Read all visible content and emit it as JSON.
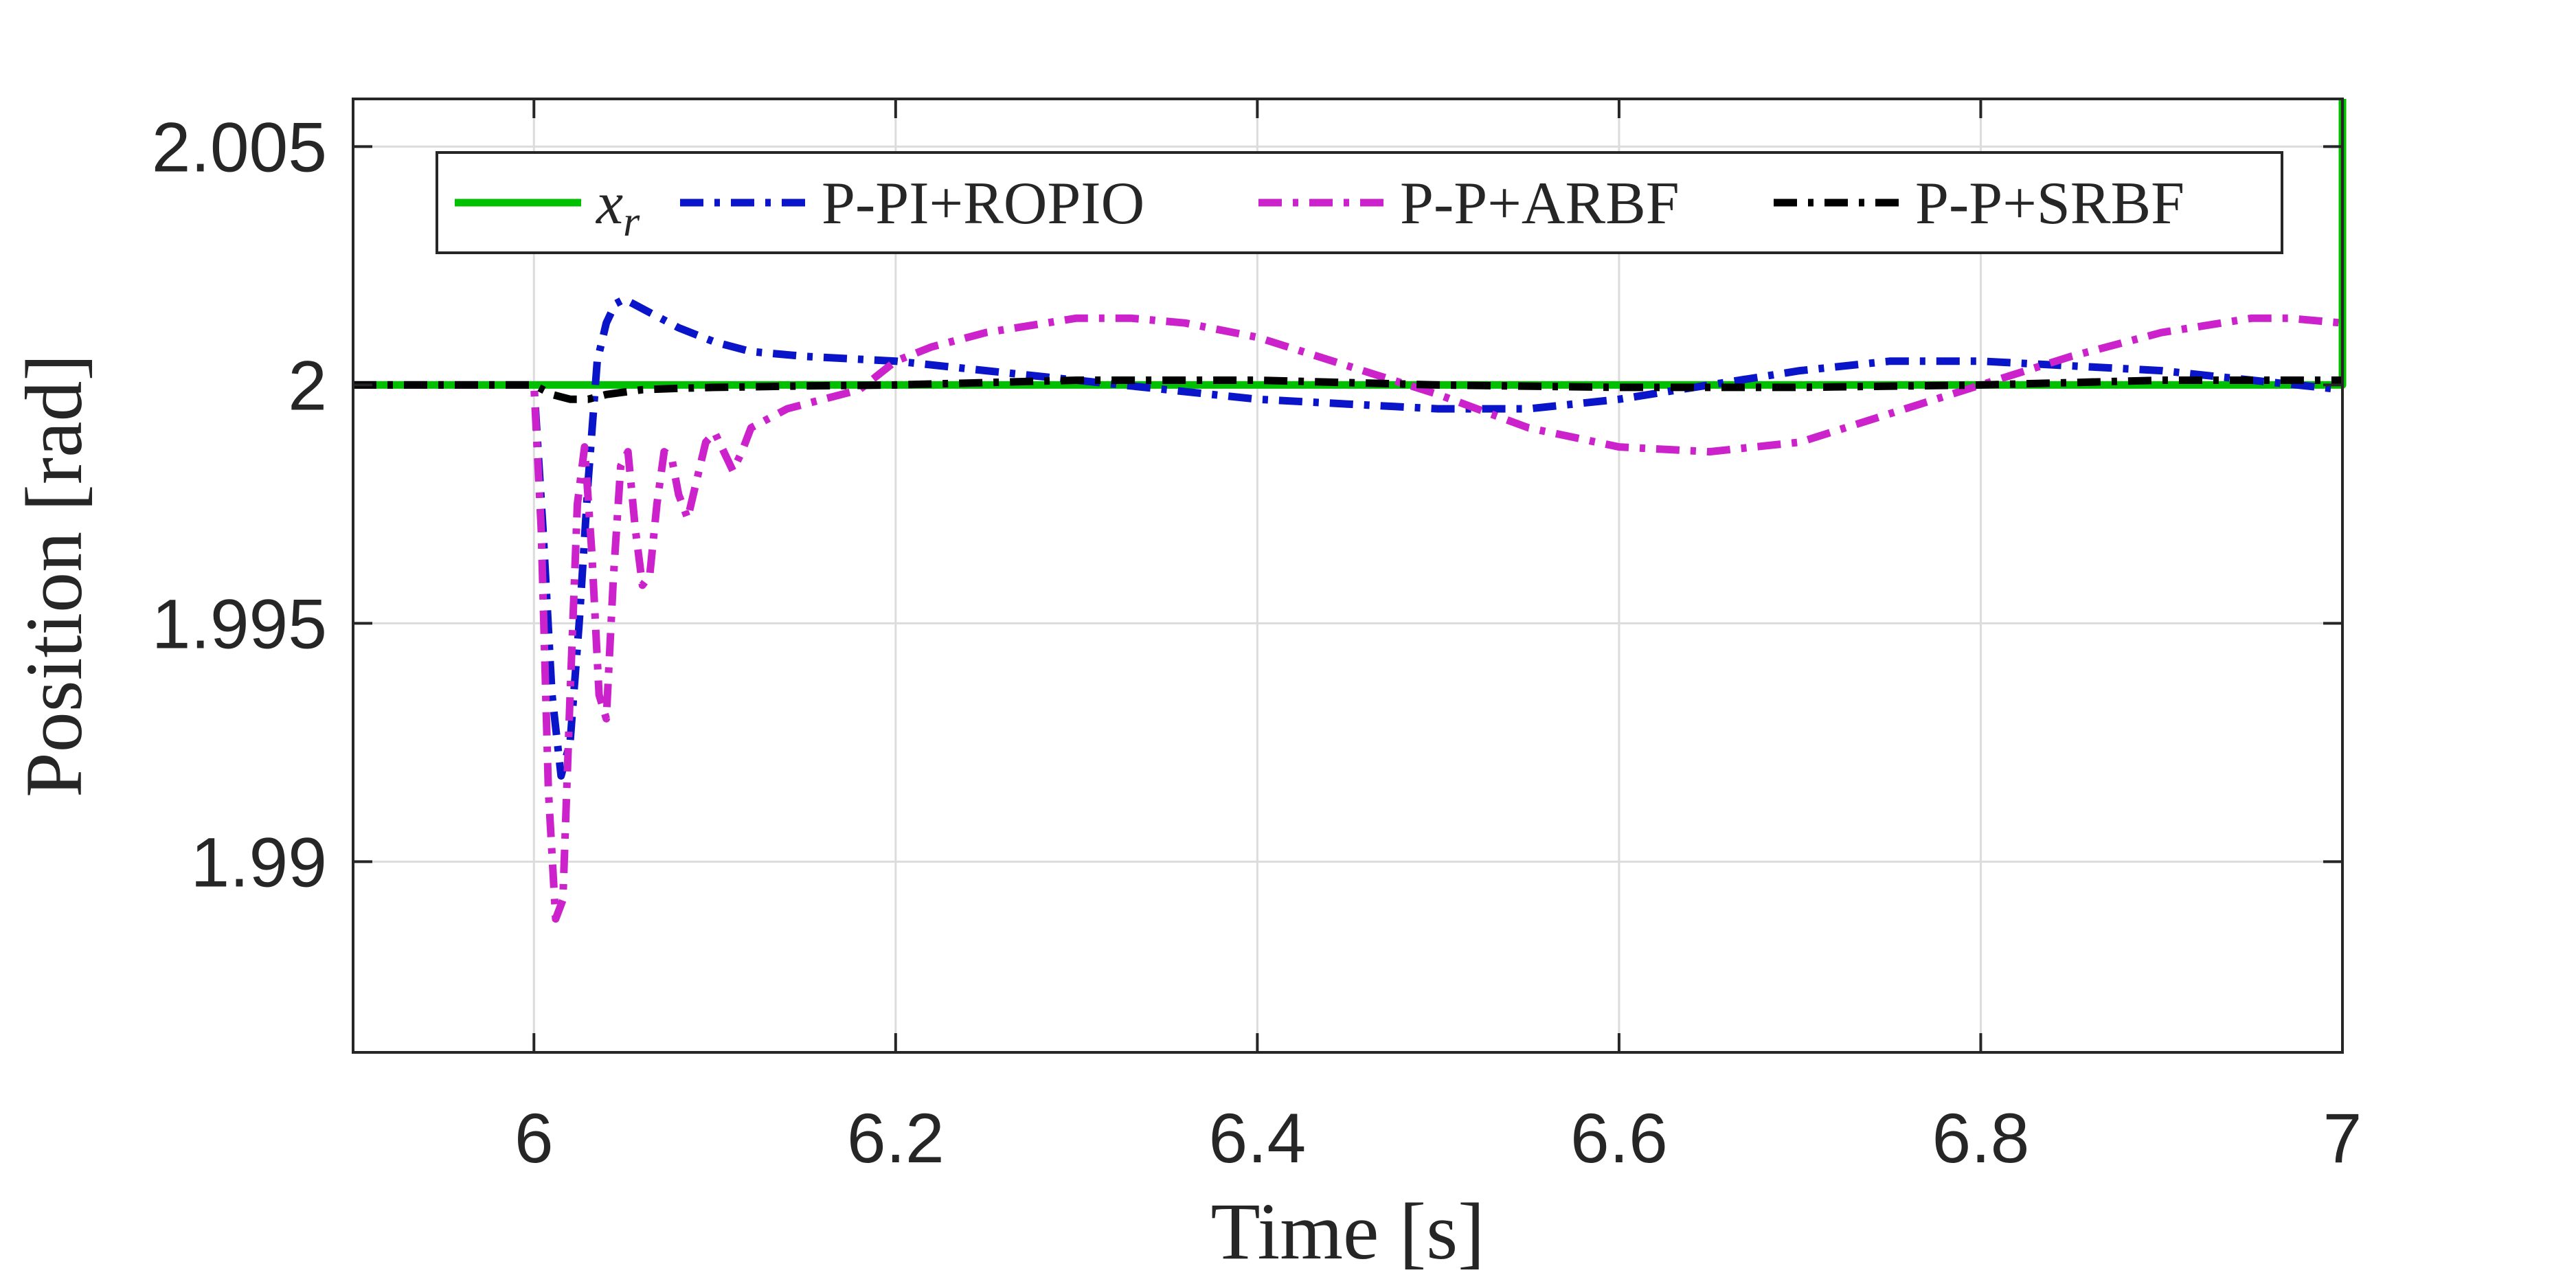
{
  "chart_data": {
    "type": "line",
    "xlabel": "Time [s]",
    "ylabel": "Position [rad]",
    "xlim": [
      5.9,
      7.0
    ],
    "ylim": [
      1.986,
      2.006
    ],
    "xticks": [
      6,
      6.2,
      6.4,
      6.6,
      6.8,
      7
    ],
    "xtick_labels": [
      "6",
      "6.2",
      "6.4",
      "6.6",
      "6.8",
      "7"
    ],
    "yticks": [
      1.99,
      1.995,
      2,
      2.005
    ],
    "ytick_labels": [
      "1.99",
      "1.995",
      "2",
      "2.005"
    ],
    "grid": true,
    "legend_placement": "top, horizontal",
    "series": [
      {
        "name": "x_r",
        "legend_label": {
          "main": "x",
          "sub": "r"
        },
        "color": "#00c000",
        "style": "solid",
        "x": [
          5.9,
          6.0,
          6.3,
          6.6,
          6.9,
          6.999,
          7.0,
          7.0
        ],
        "y": [
          2.0,
          2.0,
          2.0,
          2.0,
          2.0,
          2.0,
          2.0,
          2.006
        ]
      },
      {
        "name": "P-PI+ROPIO",
        "color": "#0a14c8",
        "style": "dashdot",
        "x": [
          5.9,
          6.0,
          6.005,
          6.01,
          6.015,
          6.02,
          6.025,
          6.03,
          6.035,
          6.04,
          6.045,
          6.05,
          6.055,
          6.06,
          6.07,
          6.08,
          6.1,
          6.12,
          6.15,
          6.2,
          6.25,
          6.3,
          6.35,
          6.4,
          6.45,
          6.5,
          6.55,
          6.6,
          6.65,
          6.7,
          6.75,
          6.8,
          6.85,
          6.9,
          6.95,
          7.0
        ],
        "y": [
          2.0,
          2.0,
          1.997,
          1.9935,
          1.9918,
          1.9925,
          1.995,
          1.998,
          2.0005,
          2.0013,
          2.0017,
          2.0018,
          2.0017,
          2.0016,
          2.0014,
          2.0012,
          2.0009,
          2.0007,
          2.0006,
          2.0005,
          2.0003,
          2.0001,
          1.9999,
          1.9997,
          1.9996,
          1.9995,
          1.9995,
          1.9997,
          2.0,
          2.0003,
          2.0005,
          2.0005,
          2.0004,
          2.0003,
          2.0001,
          1.9999
        ]
      },
      {
        "name": "P-P+ARBF",
        "color": "#cc22cc",
        "style": "dashdot",
        "x": [
          5.9,
          6.0,
          6.004,
          6.008,
          6.012,
          6.016,
          6.02,
          6.024,
          6.028,
          6.032,
          6.036,
          6.04,
          6.044,
          6.048,
          6.052,
          6.056,
          6.06,
          6.064,
          6.068,
          6.072,
          6.076,
          6.08,
          6.085,
          6.09,
          6.095,
          6.1,
          6.105,
          6.11,
          6.115,
          6.12,
          6.13,
          6.14,
          6.15,
          6.16,
          6.17,
          6.18,
          6.2,
          6.22,
          6.25,
          6.3,
          6.33,
          6.36,
          6.4,
          6.45,
          6.5,
          6.55,
          6.6,
          6.65,
          6.7,
          6.75,
          6.8,
          6.85,
          6.9,
          6.95,
          6.97,
          7.0
        ],
        "y": [
          2.0,
          2.0,
          1.997,
          1.9915,
          1.9888,
          1.9892,
          1.9935,
          1.9975,
          1.9987,
          1.9965,
          1.9935,
          1.993,
          1.996,
          1.9983,
          1.9986,
          1.997,
          1.9958,
          1.996,
          1.9975,
          1.9986,
          1.9985,
          1.9977,
          1.9972,
          1.998,
          1.9988,
          1.999,
          1.9986,
          1.9982,
          1.9986,
          1.9991,
          1.9993,
          1.9995,
          1.9996,
          1.9997,
          1.9998,
          1.9999,
          2.0005,
          2.0008,
          2.0011,
          2.0014,
          2.0014,
          2.0013,
          2.001,
          2.0004,
          1.9998,
          1.9991,
          1.9987,
          1.9986,
          1.9988,
          1.9994,
          2.0,
          2.0006,
          2.0011,
          2.0014,
          2.0014,
          2.0013
        ]
      },
      {
        "name": "P-P+SRBF",
        "color": "#000000",
        "style": "dashdot",
        "x": [
          5.9,
          6.0,
          6.01,
          6.02,
          6.03,
          6.04,
          6.06,
          6.08,
          6.1,
          6.15,
          6.2,
          6.3,
          6.4,
          6.5,
          6.6,
          6.7,
          6.8,
          6.9,
          6.95,
          7.0
        ],
        "y": [
          2.0,
          2.0,
          1.9998,
          1.9997,
          1.9997,
          1.9998,
          1.9999,
          1.99993,
          1.99995,
          1.99998,
          2.0,
          2.0001,
          2.0001,
          2.0,
          1.99995,
          1.99995,
          2.0,
          2.0001,
          2.0001,
          2.0001
        ]
      }
    ]
  }
}
